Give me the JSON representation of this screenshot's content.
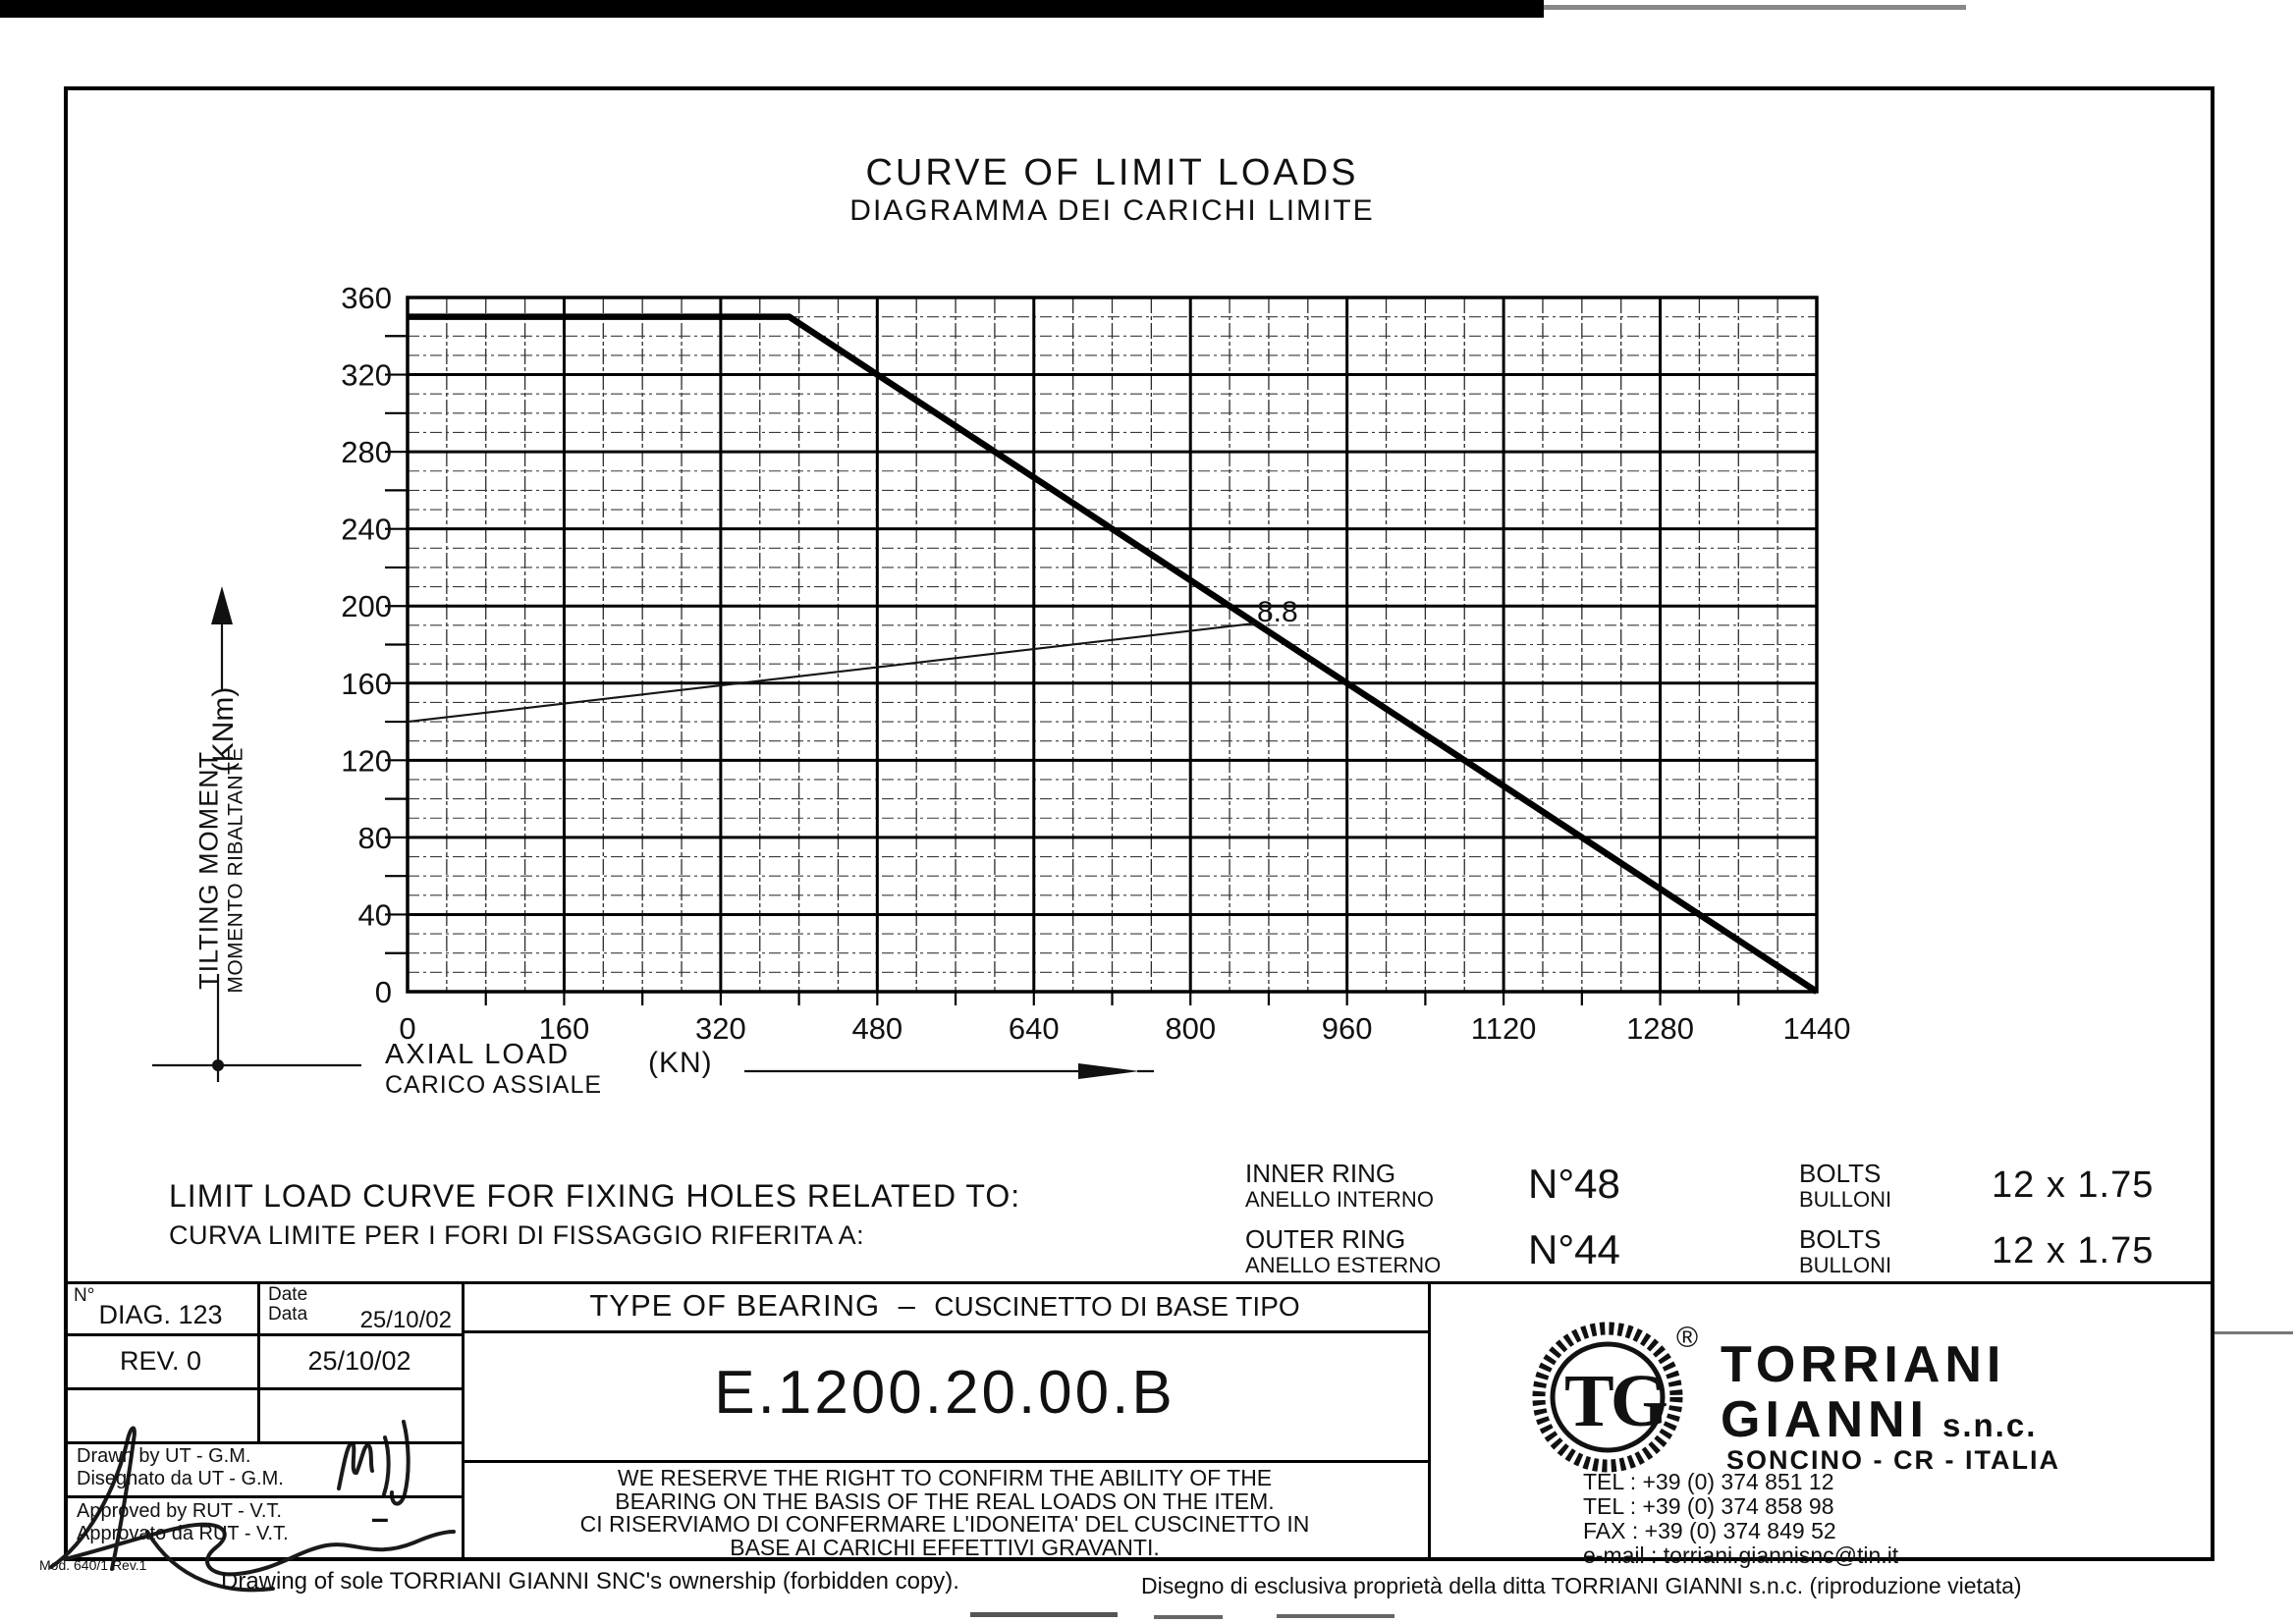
{
  "title": "CURVE OF LIMIT LOADS",
  "subtitle": "DIAGRAMMA DEI CARICHI LIMITE",
  "chart_data": {
    "type": "line",
    "title": "CURVE OF LIMIT LOADS",
    "subtitle": "DIAGRAMMA DEI CARICHI LIMITE",
    "xlabel": "AXIAL LOAD / CARICO ASSIALE (KN)",
    "ylabel": "TILTING MOMENT / MOMENTO RIBALTANTE (KNm)",
    "xlim": [
      0,
      1440
    ],
    "ylim": [
      0,
      360
    ],
    "x_ticks": [
      0,
      160,
      320,
      480,
      640,
      800,
      960,
      1120,
      1280,
      1440
    ],
    "y_ticks": [
      0,
      40,
      80,
      120,
      160,
      200,
      240,
      280,
      320,
      360
    ],
    "x_major_step": 160,
    "y_major_step": 40,
    "x_minor_step": 40,
    "y_minor_step": 10,
    "x_subtick_step": 80,
    "y_subtick_step": 20,
    "grid": true,
    "legend": false,
    "series": [
      {
        "name": "limit-load-curve",
        "style": "thick",
        "points": [
          [
            0,
            350
          ],
          [
            390,
            350
          ],
          [
            1440,
            0
          ]
        ]
      },
      {
        "name": "bolt-grade-8.8-line",
        "style": "thin",
        "points": [
          [
            0,
            140
          ],
          [
            866,
            191
          ]
        ],
        "label": "8.8",
        "label_at": [
          868,
          192
        ]
      }
    ]
  },
  "axis": {
    "y_title": "TILTING MOMENT",
    "y_title_it": "MOMENTO RIBALTANTE",
    "y_unit": "(KNm)",
    "x_title": "AXIAL LOAD",
    "x_title_it": "CARICO ASSIALE",
    "x_unit": "(KN)"
  },
  "note": {
    "en": "LIMIT LOAD CURVE FOR FIXING HOLES RELATED TO:",
    "it": "CURVA LIMITE PER I FORI DI FISSAGGIO RIFERITA A:"
  },
  "rings": [
    {
      "name_en": "INNER RING",
      "name_it": "ANELLO INTERNO",
      "qty": "N°48",
      "bolts_en": "BOLTS",
      "bolts_it": "BULLONI",
      "size": "12 x 1.75"
    },
    {
      "name_en": "OUTER RING",
      "name_it": "ANELLO ESTERNO",
      "qty": "N°44",
      "bolts_en": "BOLTS",
      "bolts_it": "BULLONI",
      "size": "12 x 1.75"
    }
  ],
  "title_block": {
    "no_label": "N°",
    "no_value": "DIAG. 123",
    "date_label_en": "Date",
    "date_label_it": "Data",
    "date_value": "25/10/02",
    "rev_value": "REV. 0",
    "rev_date": "25/10/02",
    "drawn_en": "Drawn by UT - G.M.",
    "drawn_it": "Disegnato da UT - G.M.",
    "approved_en": "Approved by RUT - V.T.",
    "approved_it": "Approvato da RUT - V.T.",
    "approved_mark": "–",
    "type_en": "TYPE OF BEARING",
    "type_sep": "–",
    "type_it": "CUSCINETTO DI BASE TIPO",
    "code": "E.1200.20.00.B",
    "disclaimer_lines": [
      "WE RESERVE THE RIGHT TO CONFIRM THE ABILITY OF THE",
      "BEARING ON THE BASIS OF THE REAL LOADS ON THE ITEM.",
      "CI RISERVIAMO DI CONFERMARE L'IDONEITA' DEL CUSCINETTO IN",
      "BASE AI CARICHI EFFETTIVI GRAVANTI."
    ],
    "mod_ref": "Mod. 640/1 Rev.1"
  },
  "company": {
    "logo_monogram": "TG",
    "registered": "®",
    "name1": "TORRIANI",
    "name2": "GIANNI",
    "suffix": "s.n.c.",
    "location": "SONCINO - CR - ITALIA",
    "contacts": [
      "TEL : +39 (0) 374 851 12",
      "TEL : +39 (0) 374 858 98",
      "FAX : +39 (0) 374 849 52",
      "e-mail : torriani.giannisnc@tin.it"
    ]
  },
  "footer": {
    "left": "Drawing of sole TORRIANI GIANNI SNC's ownership (forbidden copy).",
    "right": "Disegno di esclusiva proprietà della ditta TORRIANI GIANNI s.n.c. (riproduzione vietata)"
  }
}
